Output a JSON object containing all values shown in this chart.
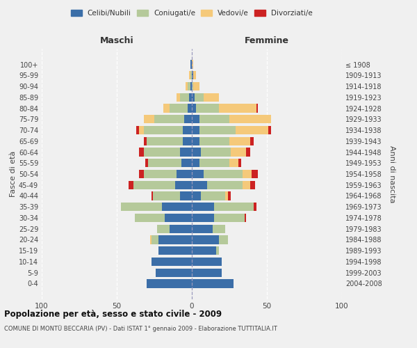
{
  "age_groups": [
    "0-4",
    "5-9",
    "10-14",
    "15-19",
    "20-24",
    "25-29",
    "30-34",
    "35-39",
    "40-44",
    "45-49",
    "50-54",
    "55-59",
    "60-64",
    "65-69",
    "70-74",
    "75-79",
    "80-84",
    "85-89",
    "90-94",
    "95-99",
    "100+"
  ],
  "birth_years": [
    "2004-2008",
    "1999-2003",
    "1994-1998",
    "1989-1993",
    "1984-1988",
    "1979-1983",
    "1974-1978",
    "1969-1973",
    "1964-1968",
    "1959-1963",
    "1954-1958",
    "1949-1953",
    "1944-1948",
    "1939-1943",
    "1934-1938",
    "1929-1933",
    "1924-1928",
    "1919-1923",
    "1914-1918",
    "1909-1913",
    "≤ 1908"
  ],
  "maschi": {
    "celibi": [
      30,
      24,
      27,
      22,
      22,
      15,
      18,
      20,
      8,
      11,
      10,
      7,
      8,
      6,
      6,
      5,
      3,
      2,
      1,
      0,
      1
    ],
    "coniugati": [
      0,
      0,
      0,
      0,
      5,
      8,
      20,
      27,
      18,
      28,
      22,
      22,
      24,
      24,
      26,
      20,
      12,
      6,
      2,
      1,
      0
    ],
    "vedovi": [
      0,
      0,
      0,
      0,
      1,
      0,
      0,
      0,
      0,
      0,
      0,
      0,
      0,
      0,
      3,
      7,
      4,
      2,
      1,
      1,
      0
    ],
    "divorziati": [
      0,
      0,
      0,
      0,
      0,
      0,
      0,
      0,
      1,
      3,
      3,
      2,
      3,
      2,
      2,
      0,
      0,
      0,
      0,
      0,
      0
    ]
  },
  "femmine": {
    "nubili": [
      28,
      20,
      20,
      16,
      18,
      14,
      15,
      15,
      6,
      10,
      8,
      5,
      6,
      5,
      5,
      5,
      3,
      2,
      0,
      1,
      0
    ],
    "coniugate": [
      0,
      0,
      0,
      2,
      6,
      8,
      20,
      26,
      16,
      24,
      26,
      20,
      20,
      20,
      24,
      20,
      15,
      6,
      1,
      0,
      0
    ],
    "vedove": [
      0,
      0,
      0,
      0,
      0,
      0,
      0,
      0,
      2,
      5,
      6,
      6,
      10,
      14,
      22,
      28,
      25,
      10,
      4,
      2,
      1
    ],
    "divorziate": [
      0,
      0,
      0,
      0,
      0,
      0,
      1,
      2,
      2,
      3,
      4,
      2,
      3,
      2,
      2,
      0,
      1,
      0,
      0,
      0,
      0
    ]
  },
  "colors": {
    "celibi": "#3b6ea8",
    "coniugati": "#b5c99a",
    "vedovi": "#f5c97a",
    "divorziati": "#cc2222"
  },
  "title": "Popolazione per età, sesso e stato civile - 2009",
  "subtitle": "COMUNE DI MONTÜ BECCARIA (PV) - Dati ISTAT 1° gennaio 2009 - Elaborazione TUTTITALIA.IT",
  "xlabel_left": "Maschi",
  "xlabel_right": "Femmine",
  "ylabel_left": "Fasce di età",
  "ylabel_right": "Anni di nascita",
  "xlim": 100,
  "legend_labels": [
    "Celibi/Nubili",
    "Coniugati/e",
    "Vedovi/e",
    "Divorziati/e"
  ],
  "bg_color": "#f0f0f0"
}
